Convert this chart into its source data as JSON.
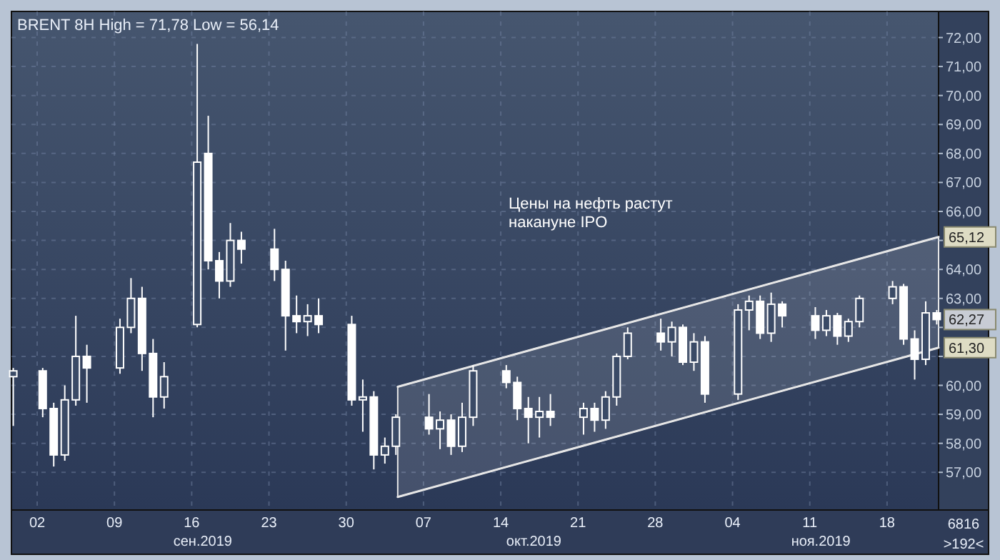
{
  "chart_data": {
    "type": "candlestick",
    "title": "BRENT 8H High = 71,78 Low = 56,14",
    "annotations": [
      "Цены на нефть растут\nнакануне IPO",
      "6816",
      ">192<",
      {
        "text": "65,12",
        "x": "2019-11-22T16:00",
        "y": 65.12
      },
      {
        "text": "62,27",
        "x": "2019-11-22T16:00",
        "y": 62.27
      },
      {
        "text": "61,30",
        "x": "2019-11-22T16:00",
        "y": 61.3
      }
    ],
    "color": "#ffffff",
    "grid": true,
    "xlim": [
      "2019-08-30T16:00",
      "2019-11-22T16:00"
    ],
    "xticks": [
      {
        "value": "2019-09-02",
        "label": "02"
      },
      {
        "value": "2019-09-09",
        "label": "09"
      },
      {
        "value": "2019-09-16",
        "label": "16"
      },
      {
        "value": "2019-09-23",
        "label": "23"
      },
      {
        "value": "2019-09-30",
        "label": "30"
      },
      {
        "value": "2019-10-07",
        "label": "07"
      },
      {
        "value": "2019-10-14",
        "label": "14"
      },
      {
        "value": "2019-10-21",
        "label": "21"
      },
      {
        "value": "2019-10-28",
        "label": "28"
      },
      {
        "value": "2019-11-04",
        "label": "04"
      },
      {
        "value": "2019-11-11",
        "label": "11"
      },
      {
        "value": "2019-11-18",
        "label": "18"
      }
    ],
    "x2lim": [
      "2019-08-30T16:00",
      "2019-11-22T16:00"
    ],
    "x2ticks": [
      {
        "value": "2019-09-17",
        "label": "сен.2019"
      },
      {
        "value": "2019-10-17",
        "label": "окт.2019"
      },
      {
        "value": "2019-11-12",
        "label": "ноя.2019"
      }
    ],
    "ylim": [
      55.7,
      72.9
    ],
    "yticks": [
      {
        "value": 57,
        "label": "57,00"
      },
      {
        "value": 58,
        "label": "58,00"
      },
      {
        "value": 59,
        "label": "59,00"
      },
      {
        "value": 60,
        "label": "60,00"
      },
      {
        "value": 61,
        "label": null
      },
      {
        "value": 62,
        "label": null
      },
      {
        "value": 63,
        "label": "63,00"
      },
      {
        "value": 64,
        "label": "64,00"
      },
      {
        "value": 65,
        "label": null
      },
      {
        "value": 66,
        "label": "66,00"
      },
      {
        "value": 67,
        "label": "67,00"
      },
      {
        "value": 68,
        "label": "68,00"
      },
      {
        "value": 69,
        "label": "69,00"
      },
      {
        "value": 70,
        "label": "70,00"
      },
      {
        "value": 71,
        "label": "71,00"
      },
      {
        "value": 72,
        "label": "72,00"
      }
    ],
    "x": [
      "2019-08-30T20:00",
      "2019-09-02T12:00",
      "2019-09-03T12:00",
      "2019-09-04T12:00",
      "2019-09-05T12:00",
      "2019-09-06T12:00",
      "2019-09-09T12:00",
      "2019-09-10T12:00",
      "2019-09-11T12:00",
      "2019-09-12T12:00",
      "2019-09-13T12:00",
      "2019-09-16T12:00",
      "2019-09-17T12:00",
      "2019-09-18T12:00",
      "2019-09-19T12:00",
      "2019-09-20T12:00",
      "2019-09-23T12:00",
      "2019-09-24T12:00",
      "2019-09-25T12:00",
      "2019-09-26T12:00",
      "2019-09-27T12:00",
      "2019-09-30T12:00",
      "2019-10-01T12:00",
      "2019-10-02T12:00",
      "2019-10-03T12:00",
      "2019-10-04T12:00",
      "2019-10-07T12:00",
      "2019-10-08T12:00",
      "2019-10-09T12:00",
      "2019-10-10T12:00",
      "2019-10-11T12:00",
      "2019-10-14T12:00",
      "2019-10-15T12:00",
      "2019-10-16T12:00",
      "2019-10-17T12:00",
      "2019-10-18T12:00",
      "2019-10-21T12:00",
      "2019-10-22T12:00",
      "2019-10-23T12:00",
      "2019-10-24T12:00",
      "2019-10-25T12:00",
      "2019-10-28T12:00",
      "2019-10-29T12:00",
      "2019-10-30T12:00",
      "2019-10-31T12:00",
      "2019-11-01T12:00",
      "2019-11-04T12:00",
      "2019-11-05T12:00",
      "2019-11-06T12:00",
      "2019-11-07T12:00",
      "2019-11-08T12:00",
      "2019-11-11T12:00",
      "2019-11-12T12:00",
      "2019-11-13T12:00",
      "2019-11-14T12:00",
      "2019-11-15T12:00",
      "2019-11-18T12:00",
      "2019-11-19T12:00",
      "2019-11-20T12:00",
      "2019-11-21T12:00",
      "2019-11-22T12:00"
    ],
    "ohlc": [
      [
        60.3,
        60.6,
        58.6,
        60.5
      ],
      [
        60.5,
        60.6,
        58.9,
        59.2
      ],
      [
        59.2,
        59.4,
        57.2,
        57.6
      ],
      [
        57.6,
        60.0,
        57.4,
        59.5
      ],
      [
        59.5,
        62.4,
        59.3,
        61.0
      ],
      [
        61.0,
        61.4,
        59.4,
        60.6
      ],
      [
        60.6,
        62.3,
        60.4,
        62.0
      ],
      [
        62.0,
        63.7,
        61.8,
        63.0
      ],
      [
        63.0,
        63.4,
        60.5,
        61.1
      ],
      [
        61.1,
        61.6,
        58.9,
        59.6
      ],
      [
        59.6,
        60.8,
        59.2,
        60.3
      ],
      [
        62.1,
        71.78,
        62.0,
        67.7
      ],
      [
        68.0,
        69.3,
        64.0,
        64.3
      ],
      [
        64.3,
        64.6,
        63.0,
        63.6
      ],
      [
        63.6,
        65.6,
        63.4,
        65.0
      ],
      [
        65.0,
        65.3,
        64.2,
        64.7
      ],
      [
        64.7,
        65.4,
        63.6,
        64.0
      ],
      [
        64.0,
        64.3,
        61.2,
        62.4
      ],
      [
        62.4,
        63.1,
        61.8,
        62.2
      ],
      [
        62.2,
        62.8,
        61.7,
        62.4
      ],
      [
        62.4,
        63.0,
        61.8,
        62.1
      ],
      [
        62.1,
        62.4,
        59.3,
        59.5
      ],
      [
        59.5,
        60.2,
        58.4,
        59.6
      ],
      [
        59.6,
        59.8,
        57.1,
        57.6
      ],
      [
        57.6,
        58.2,
        57.3,
        57.9
      ],
      [
        57.9,
        59.0,
        57.6,
        58.9
      ],
      [
        58.9,
        59.7,
        58.3,
        58.5
      ],
      [
        58.5,
        59.1,
        57.8,
        58.8
      ],
      [
        58.8,
        59.0,
        57.6,
        57.9
      ],
      [
        57.9,
        59.4,
        57.7,
        58.9
      ],
      [
        58.9,
        60.7,
        58.6,
        60.5
      ],
      [
        60.5,
        60.7,
        59.9,
        60.1
      ],
      [
        60.1,
        60.3,
        58.8,
        59.2
      ],
      [
        59.2,
        59.6,
        58.0,
        58.9
      ],
      [
        58.9,
        59.6,
        58.2,
        59.1
      ],
      [
        59.1,
        59.7,
        58.6,
        58.9
      ],
      [
        58.9,
        59.4,
        58.3,
        59.2
      ],
      [
        59.2,
        59.4,
        58.4,
        58.8
      ],
      [
        58.8,
        59.8,
        58.5,
        59.6
      ],
      [
        59.6,
        61.1,
        59.3,
        61.0
      ],
      [
        61.0,
        62.0,
        60.9,
        61.8
      ],
      [
        61.8,
        62.3,
        61.2,
        61.5
      ],
      [
        61.5,
        62.2,
        61.0,
        62.0
      ],
      [
        62.0,
        62.1,
        60.7,
        60.8
      ],
      [
        60.8,
        61.8,
        60.5,
        61.5
      ],
      [
        61.5,
        61.7,
        59.4,
        59.7
      ],
      [
        59.7,
        62.8,
        59.5,
        62.6
      ],
      [
        62.6,
        63.1,
        61.9,
        62.9
      ],
      [
        62.9,
        63.1,
        61.6,
        61.8
      ],
      [
        61.8,
        63.2,
        61.5,
        62.8
      ],
      [
        62.8,
        62.9,
        62.0,
        62.4
      ],
      [
        62.4,
        62.7,
        61.6,
        61.9
      ],
      [
        61.9,
        62.6,
        61.7,
        62.4
      ],
      [
        62.4,
        62.5,
        61.4,
        61.7
      ],
      [
        61.7,
        62.3,
        61.5,
        62.2
      ],
      [
        62.2,
        63.1,
        62.0,
        63.0
      ],
      [
        63.0,
        63.6,
        62.8,
        63.4
      ],
      [
        63.4,
        63.5,
        61.4,
        61.6
      ],
      [
        61.6,
        61.9,
        60.2,
        60.9
      ],
      [
        60.9,
        62.9,
        60.7,
        62.5
      ],
      [
        62.5,
        62.6,
        62.1,
        62.27
      ]
    ],
    "series": [
      {
        "type": "line",
        "color": "#e6e6e6",
        "x": [
          "2019-10-04T16:00",
          "2019-11-22T16:00"
        ],
        "values": [
          59.95,
          65.12
        ]
      },
      {
        "type": "line",
        "color": "#e6e6e6",
        "x": [
          "2019-10-04T16:00",
          "2019-11-22T16:00"
        ],
        "values": [
          56.15,
          61.3
        ]
      }
    ]
  }
}
